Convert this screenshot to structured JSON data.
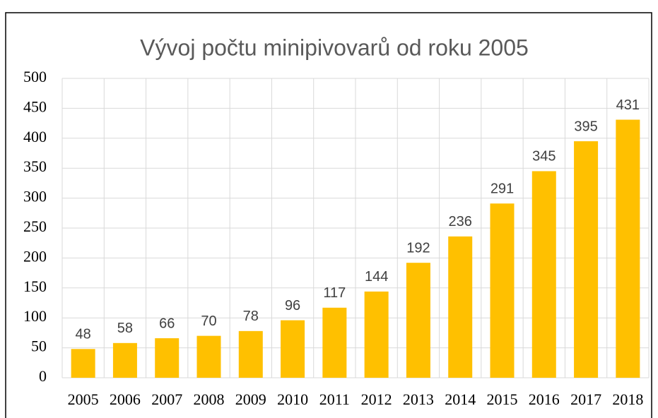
{
  "chart_data": {
    "type": "bar",
    "title": "Vývoj počtu minipivovarů od roku 2005",
    "categories": [
      "2005",
      "2006",
      "2007",
      "2008",
      "2009",
      "2010",
      "2011",
      "2012",
      "2013",
      "2014",
      "2015",
      "2016",
      "2017",
      "2018"
    ],
    "values": [
      48,
      58,
      66,
      70,
      78,
      96,
      117,
      144,
      192,
      236,
      291,
      345,
      395,
      431
    ],
    "color": "#ffc000",
    "ylim": [
      0,
      500
    ],
    "yticks": [
      0,
      50,
      100,
      150,
      200,
      250,
      300,
      350,
      400,
      450,
      500
    ],
    "grid": true
  }
}
